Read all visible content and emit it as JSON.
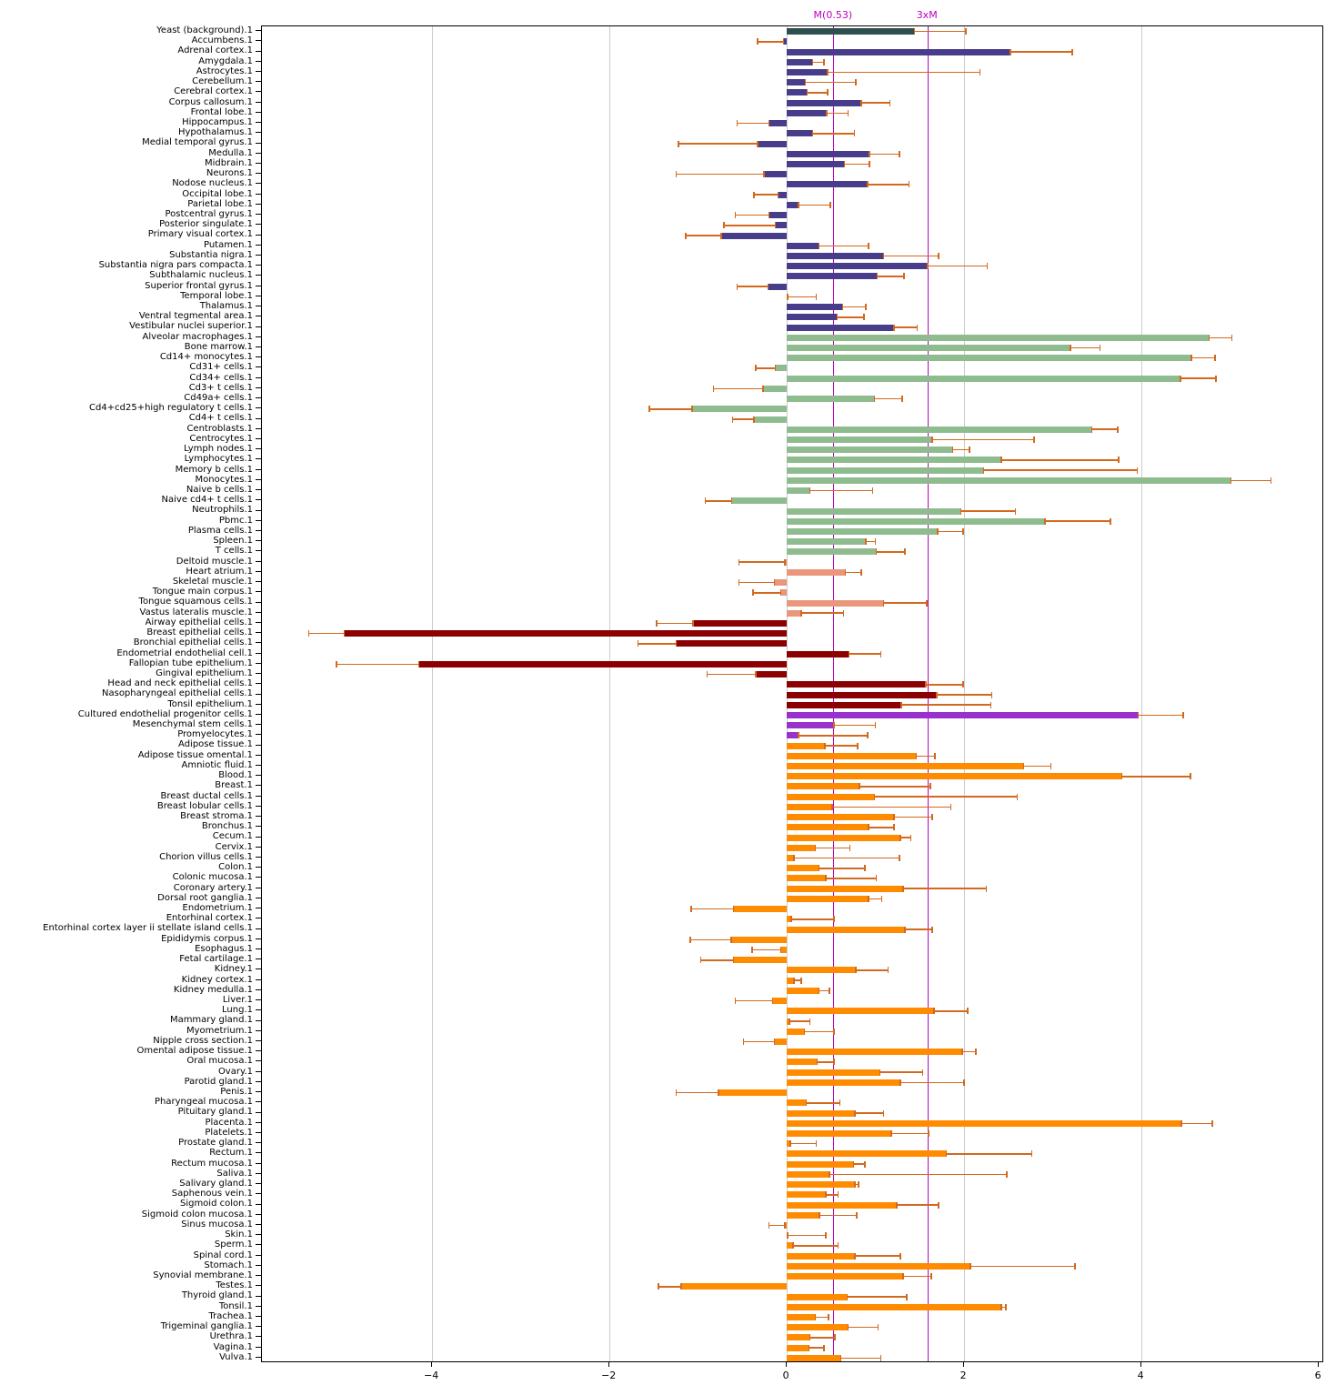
{
  "figure": {
    "background": "#ffffff",
    "reference_lines": [
      {
        "label": "M(0.53)",
        "x": 0.53
      },
      {
        "label": "3xM",
        "x": 1.59
      }
    ],
    "reference_line_color": "#bb00bb"
  },
  "chart_data": {
    "type": "bar",
    "orientation": "horizontal",
    "title": "",
    "xlabel": "",
    "ylabel": "",
    "xlim": [
      -5.92,
      6.06
    ],
    "x_ticks": [
      {
        "label": "−4",
        "v": -4
      },
      {
        "label": "−2",
        "v": -2
      },
      {
        "label": "0",
        "v": 0
      },
      {
        "label": "2",
        "v": 2
      },
      {
        "label": "4",
        "v": 4
      },
      {
        "label": "6",
        "v": 6
      }
    ],
    "grid_ticks": [
      -4,
      -2,
      0,
      2,
      4
    ],
    "grid_color": "#cccccc",
    "error_color": "#d2691e",
    "legend": "none",
    "groups": {
      "background": "#2f4f4f",
      "brain": "#483d8b",
      "immune": "#8fbc8f",
      "muscle": "#e9967a",
      "epithelial": "#8b0000",
      "stem": "#9932cc",
      "tissue": "#ff8c00"
    },
    "rows": [
      {
        "label": "Yeast (background).1",
        "value": 1.44,
        "whisker": 2.02,
        "group": "background"
      },
      {
        "label": "Accumbens.1",
        "value": -0.04,
        "whisker": -0.33,
        "group": "brain"
      },
      {
        "label": "Adrenal cortex.1",
        "value": 2.52,
        "whisker": 3.22,
        "group": "brain"
      },
      {
        "label": "Amygdala.1",
        "value": 0.29,
        "whisker": 0.42,
        "group": "brain"
      },
      {
        "label": "Astrocytes.1",
        "value": 0.46,
        "whisker": 2.18,
        "group": "brain"
      },
      {
        "label": "Cerebellum.1",
        "value": 0.21,
        "whisker": 0.78,
        "group": "brain"
      },
      {
        "label": "Cerebral cortex.1",
        "value": 0.23,
        "whisker": 0.46,
        "group": "brain"
      },
      {
        "label": "Corpus callosum.1",
        "value": 0.84,
        "whisker": 1.16,
        "group": "brain"
      },
      {
        "label": "Frontal lobe.1",
        "value": 0.45,
        "whisker": 0.69,
        "group": "brain"
      },
      {
        "label": "Hippocampus.1",
        "value": -0.2,
        "whisker": -0.56,
        "group": "brain"
      },
      {
        "label": "Hypothalamus.1",
        "value": 0.29,
        "whisker": 0.76,
        "group": "brain"
      },
      {
        "label": "Medial temporal gyrus.1",
        "value": -0.33,
        "whisker": -1.22,
        "group": "brain"
      },
      {
        "label": "Medulla.1",
        "value": 0.93,
        "whisker": 1.27,
        "group": "brain"
      },
      {
        "label": "Midbrain.1",
        "value": 0.65,
        "whisker": 0.93,
        "group": "brain"
      },
      {
        "label": "Neurons.1",
        "value": -0.26,
        "whisker": -1.25,
        "group": "brain"
      },
      {
        "label": "Nodose nucleus.1",
        "value": 0.91,
        "whisker": 1.38,
        "group": "brain"
      },
      {
        "label": "Occipital lobe.1",
        "value": -0.1,
        "whisker": -0.37,
        "group": "brain"
      },
      {
        "label": "Parietal lobe.1",
        "value": 0.13,
        "whisker": 0.49,
        "group": "brain"
      },
      {
        "label": "Postcentral gyrus.1",
        "value": -0.2,
        "whisker": -0.58,
        "group": "brain"
      },
      {
        "label": "Posterior singulate.1",
        "value": -0.13,
        "whisker": -0.71,
        "group": "brain"
      },
      {
        "label": "Primary visual cortex.1",
        "value": -0.74,
        "whisker": -1.14,
        "group": "brain"
      },
      {
        "label": "Putamen.1",
        "value": 0.36,
        "whisker": 0.92,
        "group": "brain"
      },
      {
        "label": "Substantia nigra.1",
        "value": 1.09,
        "whisker": 1.71,
        "group": "brain"
      },
      {
        "label": "Substantia nigra pars compacta.1",
        "value": 1.59,
        "whisker": 2.26,
        "group": "brain"
      },
      {
        "label": "Subthalamic nucleus.1",
        "value": 1.02,
        "whisker": 1.32,
        "group": "brain"
      },
      {
        "label": "Superior frontal gyrus.1",
        "value": -0.21,
        "whisker": -0.56,
        "group": "brain"
      },
      {
        "label": "Temporal lobe.1",
        "value": 0.01,
        "whisker": 0.33,
        "group": "brain"
      },
      {
        "label": "Thalamus.1",
        "value": 0.63,
        "whisker": 0.89,
        "group": "brain"
      },
      {
        "label": "Ventral tegmental area.1",
        "value": 0.57,
        "whisker": 0.87,
        "group": "brain"
      },
      {
        "label": "Vestibular nuclei superior.1",
        "value": 1.21,
        "whisker": 1.47,
        "group": "brain"
      },
      {
        "label": "Alveolar macrophages.1",
        "value": 4.76,
        "whisker": 5.02,
        "group": "immune"
      },
      {
        "label": "Bone marrow.1",
        "value": 3.2,
        "whisker": 3.53,
        "group": "immune"
      },
      {
        "label": "Cd14+ monocytes.1",
        "value": 4.56,
        "whisker": 4.83,
        "group": "immune"
      },
      {
        "label": "Cd31+ cells.1",
        "value": -0.13,
        "whisker": -0.35,
        "group": "immune"
      },
      {
        "label": "Cd34+ cells.1",
        "value": 4.44,
        "whisker": 4.84,
        "group": "immune"
      },
      {
        "label": "Cd3+ t cells.1",
        "value": -0.27,
        "whisker": -0.83,
        "group": "immune"
      },
      {
        "label": "Cd49a+ cells.1",
        "value": 0.99,
        "whisker": 1.3,
        "group": "immune"
      },
      {
        "label": "Cd4+cd25+high regulatory t cells.1",
        "value": -1.07,
        "whisker": -1.55,
        "group": "immune"
      },
      {
        "label": "Cd4+ t cells.1",
        "value": -0.37,
        "whisker": -0.61,
        "group": "immune"
      },
      {
        "label": "Centroblasts.1",
        "value": 3.44,
        "whisker": 3.73,
        "group": "immune"
      },
      {
        "label": "Centrocytes.1",
        "value": 1.64,
        "whisker": 2.79,
        "group": "immune"
      },
      {
        "label": "Lymph nodes.1",
        "value": 1.87,
        "whisker": 2.06,
        "group": "immune"
      },
      {
        "label": "Lymphocytes.1",
        "value": 2.42,
        "whisker": 3.74,
        "group": "immune"
      },
      {
        "label": "Memory b cells.1",
        "value": 2.22,
        "whisker": 3.95,
        "group": "immune"
      },
      {
        "label": "Monocytes.1",
        "value": 5.01,
        "whisker": 5.46,
        "group": "immune"
      },
      {
        "label": "Naive b cells.1",
        "value": 0.26,
        "whisker": 0.97,
        "group": "immune"
      },
      {
        "label": "Naive cd4+ t cells.1",
        "value": -0.62,
        "whisker": -0.92,
        "group": "immune"
      },
      {
        "label": "Neutrophils.1",
        "value": 1.96,
        "whisker": 2.58,
        "group": "immune"
      },
      {
        "label": "Pbmc.1",
        "value": 2.91,
        "whisker": 3.65,
        "group": "immune"
      },
      {
        "label": "Plasma cells.1",
        "value": 1.7,
        "whisker": 1.99,
        "group": "immune"
      },
      {
        "label": "Spleen.1",
        "value": 0.89,
        "whisker": 1.0,
        "group": "immune"
      },
      {
        "label": "T cells.1",
        "value": 1.01,
        "whisker": 1.33,
        "group": "immune"
      },
      {
        "label": "Deltoid muscle.1",
        "value": -0.02,
        "whisker": -0.54,
        "group": "muscle"
      },
      {
        "label": "Heart atrium.1",
        "value": 0.66,
        "whisker": 0.84,
        "group": "muscle"
      },
      {
        "label": "Skeletal muscle.1",
        "value": -0.14,
        "whisker": -0.54,
        "group": "muscle"
      },
      {
        "label": "Tongue main corpus.1",
        "value": -0.07,
        "whisker": -0.38,
        "group": "muscle"
      },
      {
        "label": "Tongue squamous cells.1",
        "value": 1.09,
        "whisker": 1.58,
        "group": "muscle"
      },
      {
        "label": "Vastus lateralis muscle.1",
        "value": 0.16,
        "whisker": 0.64,
        "group": "muscle"
      },
      {
        "label": "Airway epithelial cells.1",
        "value": -1.06,
        "whisker": -1.47,
        "group": "epithelial"
      },
      {
        "label": "Breast epithelial cells.1",
        "value": -4.99,
        "whisker": -5.39,
        "group": "epithelial"
      },
      {
        "label": "Bronchial epithelial cells.1",
        "value": -1.25,
        "whisker": -1.68,
        "group": "epithelial"
      },
      {
        "label": "Endometrial endothelial cell.1",
        "value": 0.7,
        "whisker": 1.06,
        "group": "epithelial"
      },
      {
        "label": "Fallopian tube epithelium.1",
        "value": -4.15,
        "whisker": -5.08,
        "group": "epithelial"
      },
      {
        "label": "Gingival epithelium.1",
        "value": -0.35,
        "whisker": -0.9,
        "group": "epithelial"
      },
      {
        "label": "Head and neck epithelial cells.1",
        "value": 1.57,
        "whisker": 1.99,
        "group": "epithelial"
      },
      {
        "label": "Nasopharyngeal epithelial cells.1",
        "value": 1.69,
        "whisker": 2.31,
        "group": "epithelial"
      },
      {
        "label": "Tonsil epithelium.1",
        "value": 1.29,
        "whisker": 2.3,
        "group": "epithelial"
      },
      {
        "label": "Cultured endothelial progenitor cells.1",
        "value": 3.96,
        "whisker": 4.47,
        "group": "stem"
      },
      {
        "label": "Mesenchymal stem cells.1",
        "value": 0.53,
        "whisker": 1.0,
        "group": "stem"
      },
      {
        "label": "Promyelocytes.1",
        "value": 0.13,
        "whisker": 0.91,
        "group": "stem"
      },
      {
        "label": "Adipose tissue.1",
        "value": 0.43,
        "whisker": 0.8,
        "group": "tissue"
      },
      {
        "label": "Adipose tissue omental.1",
        "value": 1.46,
        "whisker": 1.67,
        "group": "tissue"
      },
      {
        "label": "Amniotic fluid.1",
        "value": 2.67,
        "whisker": 2.98,
        "group": "tissue"
      },
      {
        "label": "Blood.1",
        "value": 3.78,
        "whisker": 4.55,
        "group": "tissue"
      },
      {
        "label": "Breast.1",
        "value": 0.82,
        "whisker": 1.62,
        "group": "tissue"
      },
      {
        "label": "Breast ductal cells.1",
        "value": 0.99,
        "whisker": 2.6,
        "group": "tissue"
      },
      {
        "label": "Breast lobular cells.1",
        "value": 0.51,
        "whisker": 1.85,
        "group": "tissue"
      },
      {
        "label": "Breast stroma.1",
        "value": 1.21,
        "whisker": 1.64,
        "group": "tissue"
      },
      {
        "label": "Bronchus.1",
        "value": 0.92,
        "whisker": 1.21,
        "group": "tissue"
      },
      {
        "label": "Cecum.1",
        "value": 1.28,
        "whisker": 1.4,
        "group": "tissue"
      },
      {
        "label": "Cervix.1",
        "value": 0.32,
        "whisker": 0.71,
        "group": "tissue"
      },
      {
        "label": "Chorion villus cells.1",
        "value": 0.08,
        "whisker": 1.27,
        "group": "tissue"
      },
      {
        "label": "Colon.1",
        "value": 0.36,
        "whisker": 0.88,
        "group": "tissue"
      },
      {
        "label": "Colonic mucosa.1",
        "value": 0.44,
        "whisker": 1.01,
        "group": "tissue"
      },
      {
        "label": "Coronary artery.1",
        "value": 1.31,
        "whisker": 2.25,
        "group": "tissue"
      },
      {
        "label": "Dorsal root ganglia.1",
        "value": 0.92,
        "whisker": 1.07,
        "group": "tissue"
      },
      {
        "label": "Endometrium.1",
        "value": -0.6,
        "whisker": -1.08,
        "group": "tissue"
      },
      {
        "label": "Entorhinal cortex.1",
        "value": 0.05,
        "whisker": 0.53,
        "group": "tissue"
      },
      {
        "label": "Entorhinal cortex layer ii stellate island cells.1",
        "value": 1.33,
        "whisker": 1.64,
        "group": "tissue"
      },
      {
        "label": "Epididymis corpus.1",
        "value": -0.63,
        "whisker": -1.09,
        "group": "tissue"
      },
      {
        "label": "Esophagus.1",
        "value": -0.07,
        "whisker": -0.39,
        "group": "tissue"
      },
      {
        "label": "Fetal cartilage.1",
        "value": -0.6,
        "whisker": -0.97,
        "group": "tissue"
      },
      {
        "label": "Kidney.1",
        "value": 0.78,
        "whisker": 1.14,
        "group": "tissue"
      },
      {
        "label": "Kidney cortex.1",
        "value": 0.08,
        "whisker": 0.16,
        "group": "tissue"
      },
      {
        "label": "Kidney medulla.1",
        "value": 0.36,
        "whisker": 0.48,
        "group": "tissue"
      },
      {
        "label": "Liver.1",
        "value": -0.16,
        "whisker": -0.58,
        "group": "tissue"
      },
      {
        "label": "Lung.1",
        "value": 1.66,
        "whisker": 2.04,
        "group": "tissue"
      },
      {
        "label": "Mammary gland.1",
        "value": 0.03,
        "whisker": 0.26,
        "group": "tissue"
      },
      {
        "label": "Myometrium.1",
        "value": 0.2,
        "whisker": 0.53,
        "group": "tissue"
      },
      {
        "label": "Nipple cross section.1",
        "value": -0.14,
        "whisker": -0.49,
        "group": "tissue"
      },
      {
        "label": "Omental adipose tissue.1",
        "value": 1.98,
        "whisker": 2.13,
        "group": "tissue"
      },
      {
        "label": "Oral mucosa.1",
        "value": 0.34,
        "whisker": 0.53,
        "group": "tissue"
      },
      {
        "label": "Ovary.1",
        "value": 1.05,
        "whisker": 1.53,
        "group": "tissue"
      },
      {
        "label": "Parotid gland.1",
        "value": 1.28,
        "whisker": 2.0,
        "group": "tissue"
      },
      {
        "label": "Penis.1",
        "value": -0.77,
        "whisker": -1.25,
        "group": "tissue"
      },
      {
        "label": "Pharyngeal mucosa.1",
        "value": 0.22,
        "whisker": 0.6,
        "group": "tissue"
      },
      {
        "label": "Pituitary gland.1",
        "value": 0.77,
        "whisker": 1.09,
        "group": "tissue"
      },
      {
        "label": "Placenta.1",
        "value": 4.45,
        "whisker": 4.8,
        "group": "tissue"
      },
      {
        "label": "Platelets.1",
        "value": 1.18,
        "whisker": 1.6,
        "group": "tissue"
      },
      {
        "label": "Prostate gland.1",
        "value": 0.04,
        "whisker": 0.33,
        "group": "tissue"
      },
      {
        "label": "Rectum.1",
        "value": 1.8,
        "whisker": 2.76,
        "group": "tissue"
      },
      {
        "label": "Rectum mucosa.1",
        "value": 0.75,
        "whisker": 0.88,
        "group": "tissue"
      },
      {
        "label": "Saliva.1",
        "value": 0.48,
        "whisker": 2.48,
        "group": "tissue"
      },
      {
        "label": "Salivary gland.1",
        "value": 0.77,
        "whisker": 0.81,
        "group": "tissue"
      },
      {
        "label": "Saphenous vein.1",
        "value": 0.44,
        "whisker": 0.58,
        "group": "tissue"
      },
      {
        "label": "Sigmoid colon.1",
        "value": 1.24,
        "whisker": 1.71,
        "group": "tissue"
      },
      {
        "label": "Sigmoid colon mucosa.1",
        "value": 0.37,
        "whisker": 0.79,
        "group": "tissue"
      },
      {
        "label": "Sinus mucosa.1",
        "value": -0.02,
        "whisker": -0.2,
        "group": "tissue"
      },
      {
        "label": "Skin.1",
        "value": 0.01,
        "whisker": 0.44,
        "group": "tissue"
      },
      {
        "label": "Sperm.1",
        "value": 0.07,
        "whisker": 0.58,
        "group": "tissue"
      },
      {
        "label": "Spinal cord.1",
        "value": 0.77,
        "whisker": 1.28,
        "group": "tissue"
      },
      {
        "label": "Stomach.1",
        "value": 2.07,
        "whisker": 3.25,
        "group": "tissue"
      },
      {
        "label": "Synovial membrane.1",
        "value": 1.31,
        "whisker": 1.63,
        "group": "tissue"
      },
      {
        "label": "Testes.1",
        "value": -1.19,
        "whisker": -1.45,
        "group": "tissue"
      },
      {
        "label": "Thyroid gland.1",
        "value": 0.68,
        "whisker": 1.35,
        "group": "tissue"
      },
      {
        "label": "Tonsil.1",
        "value": 2.42,
        "whisker": 2.47,
        "group": "tissue"
      },
      {
        "label": "Trachea.1",
        "value": 0.32,
        "whisker": 0.47,
        "group": "tissue"
      },
      {
        "label": "Trigeminal ganglia.1",
        "value": 0.69,
        "whisker": 1.03,
        "group": "tissue"
      },
      {
        "label": "Urethra.1",
        "value": 0.26,
        "whisker": 0.54,
        "group": "tissue"
      },
      {
        "label": "Vagina.1",
        "value": 0.25,
        "whisker": 0.42,
        "group": "tissue"
      },
      {
        "label": "Vulva.1",
        "value": 0.61,
        "whisker": 1.06,
        "group": "tissue"
      }
    ]
  }
}
